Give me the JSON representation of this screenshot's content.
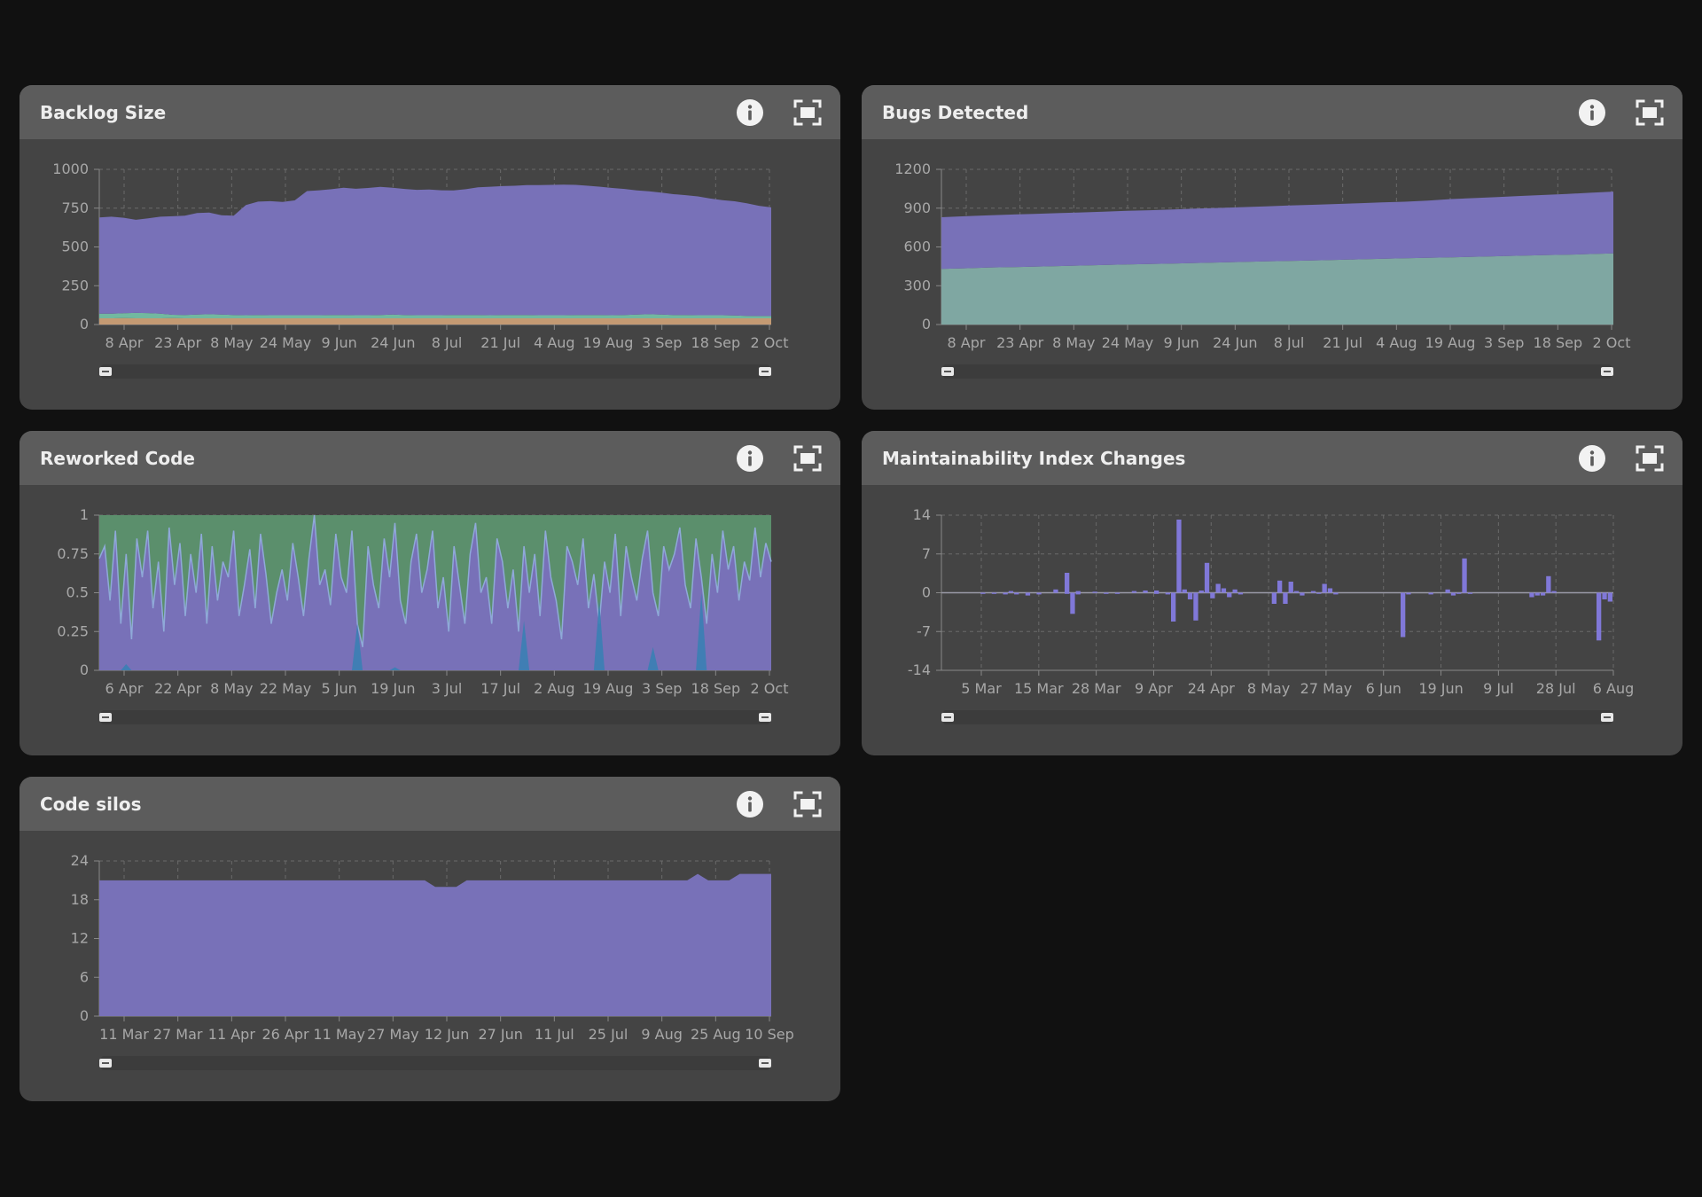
{
  "colors": {
    "page_bg": "#111111",
    "card_bg": "#444444",
    "header_bg": "#5c5c5c",
    "purple": "#7871b8",
    "teal": "#7fa7a2",
    "green": "#5b8f6c",
    "orange": "#c49a73",
    "mint": "#72b8a0",
    "blue": "#3a7fb4",
    "grid": "#6a6a6a",
    "tick": "#a8a8a8"
  },
  "header_icons": {
    "info": "info-icon",
    "expand": "expand-fullscreen-icon"
  },
  "cards": [
    {
      "id": "backlog",
      "title": "Backlog Size",
      "chart_data": {
        "type": "area",
        "stacked": true,
        "y_ticks": [
          "1000",
          "750",
          "500",
          "250",
          "0"
        ],
        "ylim": [
          0,
          1000
        ],
        "x_ticks": [
          "8 Apr",
          "23 Apr",
          "8 May",
          "24 May",
          "9 Jun",
          "24 Jun",
          "8 Jul",
          "21 Jul",
          "4 Aug",
          "19 Aug",
          "3 Sep",
          "18 Sep",
          "2 Oct"
        ],
        "x_count": 56,
        "series": [
          {
            "color": "#c49a73",
            "values": [
              40,
              40,
              41,
              40,
              40,
              40,
              41,
              40,
              40,
              40,
              40,
              40,
              40,
              40,
              40,
              40,
              40,
              40,
              40,
              40,
              40,
              40,
              40,
              40,
              40,
              40,
              40,
              40,
              40,
              40,
              40,
              40,
              40,
              40,
              40,
              40,
              40,
              40,
              40,
              40,
              40,
              40,
              40,
              40,
              40,
              40,
              40,
              40,
              40,
              40,
              40,
              40,
              40,
              40,
              40,
              40
            ]
          },
          {
            "color": "#72b8a0",
            "values": [
              30,
              30,
              32,
              35,
              34,
              30,
              22,
              22,
              24,
              26,
              24,
              22,
              20,
              22,
              20,
              20,
              20,
              20,
              20,
              22,
              22,
              20,
              20,
              22,
              24,
              22,
              20,
              20,
              20,
              22,
              22,
              22,
              20,
              22,
              22,
              22,
              20,
              20,
              20,
              22,
              22,
              22,
              20,
              22,
              24,
              26,
              24,
              22,
              22,
              20,
              20,
              20,
              18,
              16,
              15,
              15
            ]
          },
          {
            "color": "#7871b8",
            "values": [
              620,
              625,
              615,
              600,
              610,
              625,
              635,
              640,
              655,
              655,
              640,
              640,
              710,
              730,
              735,
              730,
              740,
              800,
              805,
              810,
              820,
              815,
              820,
              825,
              818,
              812,
              808,
              810,
              805,
              802,
              810,
              822,
              828,
              830,
              832,
              836,
              838,
              840,
              842,
              838,
              832,
              826,
              820,
              812,
              800,
              792,
              786,
              778,
              772,
              766,
              752,
              742,
              736,
              726,
              710,
              700
            ]
          }
        ]
      }
    },
    {
      "id": "bugs",
      "title": "Bugs Detected",
      "chart_data": {
        "type": "area",
        "stacked": true,
        "y_ticks": [
          "1200",
          "900",
          "600",
          "300",
          "0"
        ],
        "ylim": [
          0,
          1200
        ],
        "x_ticks": [
          "8 Apr",
          "23 Apr",
          "8 May",
          "24 May",
          "9 Jun",
          "24 Jun",
          "8 Jul",
          "21 Jul",
          "4 Aug",
          "19 Aug",
          "3 Sep",
          "18 Sep",
          "2 Oct"
        ],
        "x_count": 30,
        "series": [
          {
            "color": "#7fa7a2",
            "values": [
              430,
              435,
              440,
              444,
              448,
              452,
              456,
              460,
              464,
              468,
              472,
              476,
              480,
              484,
              488,
              492,
              496,
              500,
              504,
              508,
              512,
              516,
              520,
              524,
              528,
              532,
              536,
              540,
              545,
              550
            ]
          },
          {
            "color": "#7871b8",
            "values": [
              400,
              402,
              404,
              406,
              407,
              409,
              411,
              413,
              415,
              416,
              418,
              420,
              422,
              424,
              426,
              428,
              430,
              432,
              434,
              436,
              438,
              442,
              450,
              454,
              458,
              462,
              466,
              470,
              474,
              478
            ]
          }
        ]
      }
    },
    {
      "id": "reworked",
      "title": "Reworked Code",
      "chart_data": {
        "type": "area",
        "stacked": false,
        "y_ticks": [
          "1",
          "0.75",
          "0.5",
          "0.25",
          "0"
        ],
        "ylim": [
          0,
          1
        ],
        "x_ticks": [
          "6 Apr",
          "22 Apr",
          "8 May",
          "22 May",
          "5 Jun",
          "19 Jun",
          "3 Jul",
          "17 Jul",
          "2 Aug",
          "19 Aug",
          "3 Sep",
          "18 Sep",
          "2 Oct"
        ],
        "background_series": {
          "color": "#5b8f6c",
          "value": 1
        },
        "series": [
          {
            "color": "#7871b8",
            "values": [
              0.72,
              0.8,
              0.45,
              0.9,
              0.3,
              0.75,
              0.2,
              0.85,
              0.6,
              0.9,
              0.4,
              0.7,
              0.25,
              0.92,
              0.55,
              0.82,
              0.35,
              0.75,
              0.5,
              0.88,
              0.3,
              0.8,
              0.45,
              0.7,
              0.6,
              0.9,
              0.35,
              0.55,
              0.78,
              0.4,
              0.88,
              0.62,
              0.3,
              0.5,
              0.65,
              0.45,
              0.82,
              0.6,
              0.35,
              0.72,
              1.0,
              0.55,
              0.65,
              0.42,
              0.88,
              0.6,
              0.5,
              0.9,
              0.3,
              0.15,
              0.8,
              0.55,
              0.4,
              0.85,
              0.6,
              0.95,
              0.45,
              0.3,
              0.7,
              0.88,
              0.5,
              0.65,
              0.9,
              0.4,
              0.6,
              0.25,
              0.8,
              0.55,
              0.3,
              0.75,
              0.95,
              0.5,
              0.6,
              0.3,
              0.85,
              0.7,
              0.4,
              0.65,
              0.25,
              0.8,
              0.5,
              0.75,
              0.35,
              0.9,
              0.6,
              0.45,
              0.2,
              0.8,
              0.7,
              0.55,
              0.85,
              0.4,
              0.62,
              0.3,
              0.7,
              0.5,
              0.88,
              0.35,
              0.8,
              0.6,
              0.45,
              0.72,
              0.9,
              0.5,
              0.35,
              0.8,
              0.65,
              0.75,
              0.92,
              0.55,
              0.4,
              0.85,
              0.6,
              0.3,
              0.75,
              0.5,
              0.9,
              0.65,
              0.8,
              0.45,
              0.7,
              0.58,
              0.92,
              0.6,
              0.82,
              0.7
            ]
          },
          {
            "color": "#3a7fb4",
            "values": [
              0,
              0,
              0,
              0,
              0,
              0.04,
              0,
              0,
              0,
              0,
              0,
              0,
              0,
              0,
              0,
              0,
              0,
              0,
              0,
              0,
              0,
              0,
              0,
              0,
              0,
              0,
              0,
              0,
              0,
              0,
              0,
              0,
              0,
              0,
              0,
              0,
              0,
              0,
              0,
              0,
              0,
              0,
              0,
              0,
              0,
              0,
              0,
              0,
              0.3,
              0,
              0,
              0,
              0,
              0,
              0,
              0.02,
              0,
              0,
              0,
              0,
              0,
              0,
              0,
              0,
              0,
              0,
              0,
              0,
              0,
              0,
              0,
              0,
              0,
              0,
              0,
              0,
              0,
              0,
              0,
              0.32,
              0,
              0,
              0,
              0,
              0,
              0,
              0,
              0,
              0,
              0,
              0,
              0,
              0,
              0.45,
              0,
              0,
              0,
              0,
              0,
              0,
              0,
              0,
              0,
              0.15,
              0,
              0,
              0,
              0,
              0,
              0,
              0,
              0,
              0.5,
              0,
              0,
              0,
              0,
              0,
              0,
              0,
              0,
              0,
              0,
              0,
              0,
              0
            ]
          }
        ]
      }
    },
    {
      "id": "maintainability",
      "title": "Maintainability Index Changes",
      "chart_data": {
        "type": "bar",
        "y_ticks": [
          "14",
          "7",
          "0",
          "-7",
          "-14"
        ],
        "ylim": [
          -14,
          14
        ],
        "x_ticks": [
          "5 Mar",
          "15 Mar",
          "28 Mar",
          "9 Apr",
          "24 Apr",
          "8 May",
          "27 May",
          "6 Jun",
          "19 Jun",
          "9 Jul",
          "28 Jul",
          "6 Aug"
        ],
        "x_count": 120,
        "bars": [
          [
            7,
            -0.2
          ],
          [
            9,
            -0.2
          ],
          [
            11,
            -0.3
          ],
          [
            12,
            0.3
          ],
          [
            13,
            -0.3
          ],
          [
            15,
            -0.5
          ],
          [
            17,
            -0.3
          ],
          [
            20,
            0.6
          ],
          [
            22,
            -0.2
          ],
          [
            24,
            -0.3
          ],
          [
            27,
            0.2
          ],
          [
            29,
            -0.2
          ],
          [
            31,
            -0.2
          ],
          [
            34,
            0.3
          ],
          [
            36,
            0.4
          ],
          [
            38,
            -0.2
          ],
          [
            40,
            -0.3
          ],
          [
            44,
            -0.2
          ],
          [
            22,
            3.6
          ],
          [
            23,
            -3.8
          ],
          [
            24,
            0.3
          ],
          [
            38,
            0.4
          ],
          [
            41,
            -5.2
          ],
          [
            42,
            13.2
          ],
          [
            43,
            0.6
          ],
          [
            44,
            -1.2
          ],
          [
            45,
            -5.0
          ],
          [
            46,
            0.4
          ],
          [
            47,
            5.4
          ],
          [
            48,
            -1.0
          ],
          [
            49,
            1.6
          ],
          [
            50,
            0.8
          ],
          [
            51,
            -0.8
          ],
          [
            52,
            0.6
          ],
          [
            53,
            -0.3
          ],
          [
            59,
            -2.0
          ],
          [
            60,
            2.2
          ],
          [
            61,
            -2.0
          ],
          [
            62,
            2.0
          ],
          [
            63,
            0.3
          ],
          [
            64,
            -0.5
          ],
          [
            66,
            0.3
          ],
          [
            67,
            -0.2
          ],
          [
            68,
            1.6
          ],
          [
            69,
            0.8
          ],
          [
            70,
            -0.3
          ],
          [
            82,
            -8.0
          ],
          [
            83,
            -0.3
          ],
          [
            87,
            -0.3
          ],
          [
            90,
            0.6
          ],
          [
            91,
            -0.5
          ],
          [
            92,
            -0.2
          ],
          [
            93,
            6.2
          ],
          [
            94,
            -0.2
          ],
          [
            105,
            -0.8
          ],
          [
            106,
            -0.5
          ],
          [
            107,
            -0.5
          ],
          [
            108,
            3.0
          ],
          [
            109,
            0.3
          ],
          [
            117,
            -8.6
          ],
          [
            118,
            -1.2
          ],
          [
            119,
            -1.6
          ]
        ]
      }
    },
    {
      "id": "silos",
      "title": "Code silos",
      "chart_data": {
        "type": "area",
        "stacked": false,
        "y_ticks": [
          "24",
          "18",
          "12",
          "6",
          "0"
        ],
        "ylim": [
          0,
          24
        ],
        "x_ticks": [
          "11 Mar",
          "27 Mar",
          "11 Apr",
          "26 Apr",
          "11 May",
          "27 May",
          "12 Jun",
          "27 Jun",
          "11 Jul",
          "25 Jul",
          "9 Aug",
          "25 Aug",
          "10 Sep"
        ],
        "series": [
          {
            "color": "#7871b8",
            "values": [
              21,
              21,
              21,
              21,
              21,
              21,
              21,
              21,
              21,
              21,
              21,
              21,
              21,
              21,
              21,
              21,
              21,
              21,
              21,
              21,
              21,
              21,
              21,
              21,
              21,
              21,
              21,
              21,
              21,
              21,
              21,
              21,
              20,
              20,
              20,
              21,
              21,
              21,
              21,
              21,
              21,
              21,
              21,
              21,
              21,
              21,
              21,
              21,
              21,
              21,
              21,
              21,
              21,
              21,
              21,
              21,
              21,
              22,
              21,
              21,
              21,
              22,
              22,
              22,
              22
            ]
          }
        ]
      }
    }
  ]
}
